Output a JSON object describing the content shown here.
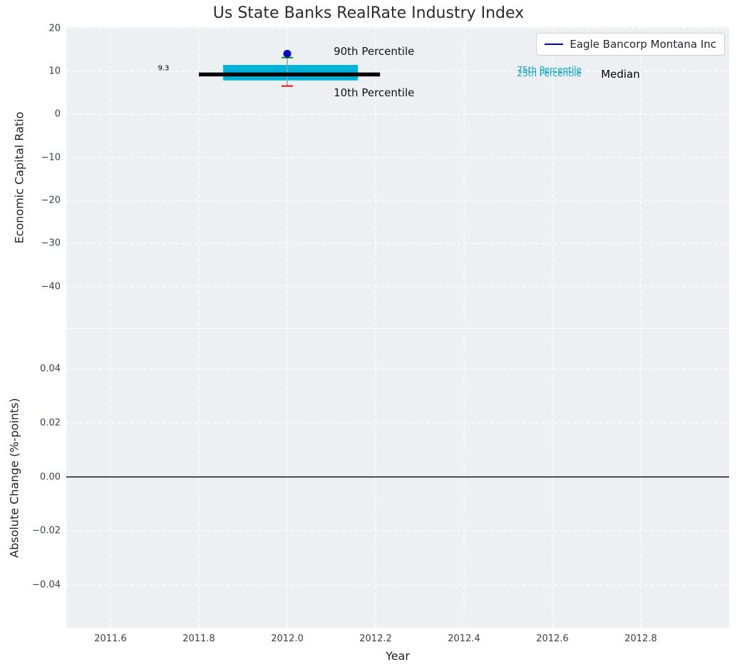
{
  "figure": {
    "title": "Us State Banks RealRate Industry Index",
    "legend": {
      "label": "Eagle Bancorp Montana Inc",
      "line_color": "#0000cd",
      "position": "upper right"
    }
  },
  "chart_data": [
    {
      "type": "line",
      "title": "Us State Banks RealRate Industry Index",
      "ylabel": "Economic Capital Ratio",
      "xlim": [
        2011.5,
        2013.0
      ],
      "ylim": [
        -49.7,
        20.3
      ],
      "grid": true,
      "yticks": [
        {
          "value": 20,
          "label": "20"
        },
        {
          "value": 10,
          "label": "10"
        },
        {
          "value": 0,
          "label": "0"
        },
        {
          "value": -10,
          "label": "−10"
        },
        {
          "value": -20,
          "label": "−20"
        },
        {
          "value": -30,
          "label": "−30"
        },
        {
          "value": -40,
          "label": "−40"
        }
      ],
      "median_line": {
        "x_start": 2011.8,
        "x_end": 2012.21,
        "value": 9.3,
        "color": "#000000",
        "label": "Median"
      },
      "iqr_band": {
        "x_start": 2011.855,
        "x_end": 2012.16,
        "p75": 11.5,
        "p25": 7.9,
        "color": "#00b2d9"
      },
      "whisker": {
        "x": 2012.0,
        "p90": 13.2,
        "p10": 6.6,
        "p90_color": "#1fa01f",
        "p10_color": "#e02020",
        "line_color": "#9e9e9e"
      },
      "company_point": {
        "name": "Eagle Bancorp Montana Inc",
        "x": 2012.0,
        "value": 14.1,
        "color": "#0000cd"
      },
      "annotations": {
        "median_value": {
          "text": "9.3",
          "x": 2011.72,
          "y": 10.6,
          "color": "#000000",
          "anchor": "middle"
        },
        "p90": {
          "text": "90th Percentile",
          "x": 2012.105,
          "y": 14.6,
          "color": "#111111",
          "anchor": "start"
        },
        "p10": {
          "text": "10th Percentile",
          "x": 2012.105,
          "y": 5.1,
          "color": "#111111",
          "anchor": "start"
        },
        "p75": {
          "text": "75th Percentile",
          "x": 2012.52,
          "y": 10.35,
          "color": "#00a2c8",
          "anchor": "start"
        },
        "p25": {
          "text": "25th Percentile",
          "x": 2012.52,
          "y": 9.55,
          "color": "#00a2c8",
          "anchor": "start"
        },
        "median": {
          "text": "Median",
          "x": 2012.71,
          "y": 9.4,
          "color": "#000000",
          "anchor": "start"
        }
      }
    },
    {
      "type": "line",
      "ylabel": "Absolute Change (%-points)",
      "xlabel": "Year",
      "xlim": [
        2011.5,
        2013.0
      ],
      "ylim": [
        -0.0558,
        0.0548
      ],
      "grid": true,
      "zero_line": {
        "value": 0.0,
        "color": "#000000"
      },
      "yticks": [
        {
          "value": 0.04,
          "label": "0.04"
        },
        {
          "value": 0.02,
          "label": "0.02"
        },
        {
          "value": 0.0,
          "label": "0.00"
        },
        {
          "value": -0.02,
          "label": "−0.02"
        },
        {
          "value": -0.04,
          "label": "−0.04"
        }
      ],
      "xticks": [
        {
          "value": 2011.6,
          "label": "2011.6"
        },
        {
          "value": 2011.8,
          "label": "2011.8"
        },
        {
          "value": 2012.0,
          "label": "2012.0"
        },
        {
          "value": 2012.2,
          "label": "2012.2"
        },
        {
          "value": 2012.4,
          "label": "2012.4"
        },
        {
          "value": 2012.6,
          "label": "2012.6"
        },
        {
          "value": 2012.8,
          "label": "2012.8"
        }
      ]
    }
  ]
}
